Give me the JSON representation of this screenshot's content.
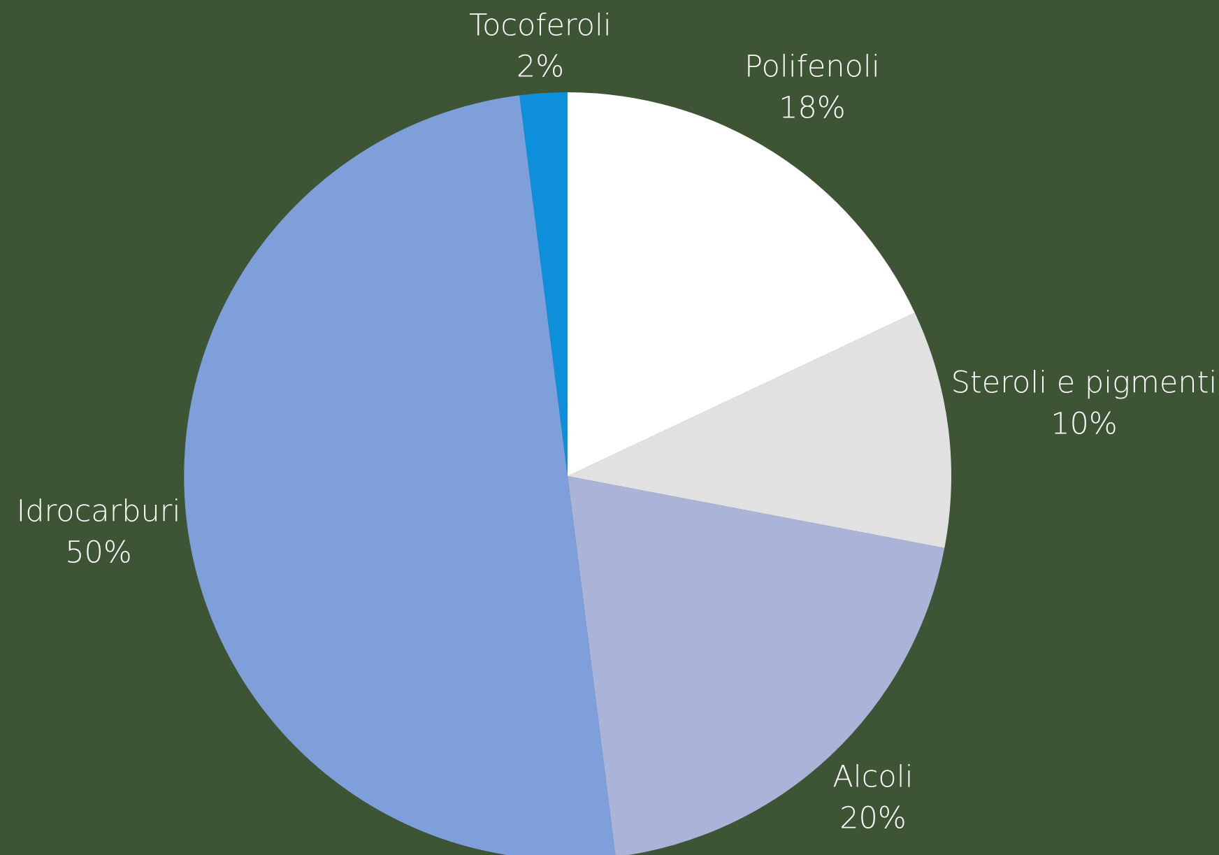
{
  "chart_data": {
    "type": "pie",
    "categories": [
      "Polifenoli",
      "Steroli e pigmenti",
      "Alcoli",
      "Idrocarburi",
      "Tocoferoli"
    ],
    "values": [
      18,
      10,
      20,
      50,
      2
    ],
    "value_labels": [
      "18%",
      "10%",
      "20%",
      "50%",
      "2%"
    ],
    "colors": [
      "#ffffff",
      "#e1e1e1",
      "#aab3d8",
      "#7f9fdb",
      "#0d8fdb"
    ]
  }
}
